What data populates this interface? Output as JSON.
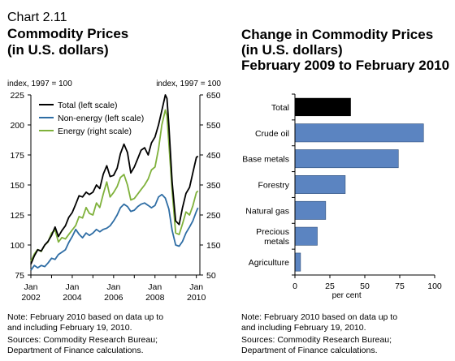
{
  "chart_data": [
    {
      "type": "line",
      "number": "Chart 2.11",
      "title": [
        "Commodity Prices",
        "(in U.S. dollars)"
      ],
      "left_axis_label": "index, 1997 = 100",
      "right_axis_label": "index, 1997 = 100",
      "ylim_left": [
        75,
        225
      ],
      "ylim_right": [
        50,
        650
      ],
      "yticks_left": [
        75,
        100,
        125,
        150,
        175,
        200,
        225
      ],
      "yticks_right": [
        50,
        150,
        250,
        350,
        450,
        550,
        650
      ],
      "xlim": [
        2002,
        2010.17
      ],
      "xticks": [
        {
          "value": 2002,
          "label": [
            "Jan",
            "2002"
          ]
        },
        {
          "value": 2004,
          "label": [
            "Jan",
            "2004"
          ]
        },
        {
          "value": 2006,
          "label": [
            "Jan",
            "2006"
          ]
        },
        {
          "value": 2008,
          "label": [
            "Jan",
            "2008"
          ]
        },
        {
          "value": 2010,
          "label": [
            "Jan",
            "2010"
          ]
        }
      ],
      "legend_position": "top-left",
      "series": [
        {
          "name": "Total (left scale)",
          "axis": "left",
          "color": "#000000",
          "points": [
            [
              2002.0,
              84
            ],
            [
              2002.17,
              91
            ],
            [
              2002.33,
              96
            ],
            [
              2002.5,
              95
            ],
            [
              2002.67,
              100
            ],
            [
              2002.83,
              103
            ],
            [
              2003.0,
              108
            ],
            [
              2003.17,
              115
            ],
            [
              2003.33,
              107
            ],
            [
              2003.5,
              112
            ],
            [
              2003.67,
              116
            ],
            [
              2003.83,
              123
            ],
            [
              2004.0,
              127
            ],
            [
              2004.17,
              134
            ],
            [
              2004.33,
              141
            ],
            [
              2004.5,
              140
            ],
            [
              2004.67,
              144
            ],
            [
              2004.83,
              142
            ],
            [
              2005.0,
              144
            ],
            [
              2005.17,
              150
            ],
            [
              2005.33,
              147
            ],
            [
              2005.5,
              159
            ],
            [
              2005.67,
              166
            ],
            [
              2005.83,
              157
            ],
            [
              2006.0,
              158
            ],
            [
              2006.17,
              164
            ],
            [
              2006.33,
              176
            ],
            [
              2006.5,
              184
            ],
            [
              2006.67,
              177
            ],
            [
              2006.83,
              160
            ],
            [
              2007.0,
              165
            ],
            [
              2007.17,
              172
            ],
            [
              2007.33,
              179
            ],
            [
              2007.5,
              181
            ],
            [
              2007.67,
              175
            ],
            [
              2007.83,
              185
            ],
            [
              2008.0,
              190
            ],
            [
              2008.17,
              200
            ],
            [
              2008.33,
              212
            ],
            [
              2008.5,
              225
            ],
            [
              2008.58,
              222
            ],
            [
              2008.67,
              200
            ],
            [
              2008.83,
              152
            ],
            [
              2009.0,
              120
            ],
            [
              2009.17,
              117
            ],
            [
              2009.33,
              131
            ],
            [
              2009.5,
              143
            ],
            [
              2009.67,
              148
            ],
            [
              2009.83,
              160
            ],
            [
              2010.0,
              173
            ],
            [
              2010.08,
              174
            ]
          ]
        },
        {
          "name": "Non-energy (left scale)",
          "axis": "left",
          "color": "#2e6da4",
          "points": [
            [
              2002.0,
              79
            ],
            [
              2002.17,
              83
            ],
            [
              2002.33,
              81
            ],
            [
              2002.5,
              83
            ],
            [
              2002.67,
              82
            ],
            [
              2002.83,
              85
            ],
            [
              2003.0,
              89
            ],
            [
              2003.17,
              88
            ],
            [
              2003.33,
              92
            ],
            [
              2003.5,
              94
            ],
            [
              2003.67,
              96
            ],
            [
              2003.83,
              102
            ],
            [
              2004.0,
              107
            ],
            [
              2004.17,
              113
            ],
            [
              2004.33,
              109
            ],
            [
              2004.5,
              106
            ],
            [
              2004.67,
              110
            ],
            [
              2004.83,
              108
            ],
            [
              2005.0,
              110
            ],
            [
              2005.17,
              113
            ],
            [
              2005.33,
              111
            ],
            [
              2005.5,
              113
            ],
            [
              2005.67,
              114
            ],
            [
              2005.83,
              116
            ],
            [
              2006.0,
              120
            ],
            [
              2006.17,
              125
            ],
            [
              2006.33,
              131
            ],
            [
              2006.5,
              134
            ],
            [
              2006.67,
              132
            ],
            [
              2006.83,
              128
            ],
            [
              2007.0,
              129
            ],
            [
              2007.17,
              132
            ],
            [
              2007.33,
              134
            ],
            [
              2007.5,
              135
            ],
            [
              2007.67,
              133
            ],
            [
              2007.83,
              131
            ],
            [
              2008.0,
              133
            ],
            [
              2008.17,
              140
            ],
            [
              2008.33,
              142
            ],
            [
              2008.5,
              139
            ],
            [
              2008.67,
              130
            ],
            [
              2008.83,
              112
            ],
            [
              2009.0,
              100
            ],
            [
              2009.17,
              99
            ],
            [
              2009.33,
              103
            ],
            [
              2009.5,
              110
            ],
            [
              2009.67,
              115
            ],
            [
              2009.83,
              120
            ],
            [
              2010.0,
              128
            ],
            [
              2010.08,
              131
            ]
          ]
        },
        {
          "name": "Energy (right scale)",
          "axis": "right",
          "color": "#7fb13b",
          "points": [
            [
              2002.0,
              95
            ],
            [
              2002.17,
              120
            ],
            [
              2002.33,
              135
            ],
            [
              2002.5,
              128
            ],
            [
              2002.67,
              150
            ],
            [
              2002.83,
              160
            ],
            [
              2003.0,
              190
            ],
            [
              2003.17,
              200
            ],
            [
              2003.33,
              160
            ],
            [
              2003.5,
              175
            ],
            [
              2003.67,
              170
            ],
            [
              2003.83,
              185
            ],
            [
              2004.0,
              200
            ],
            [
              2004.17,
              215
            ],
            [
              2004.33,
              245
            ],
            [
              2004.5,
              240
            ],
            [
              2004.67,
              275
            ],
            [
              2004.83,
              255
            ],
            [
              2005.0,
              250
            ],
            [
              2005.17,
              290
            ],
            [
              2005.33,
              275
            ],
            [
              2005.5,
              320
            ],
            [
              2005.67,
              360
            ],
            [
              2005.83,
              310
            ],
            [
              2006.0,
              325
            ],
            [
              2006.17,
              345
            ],
            [
              2006.33,
              375
            ],
            [
              2006.5,
              385
            ],
            [
              2006.67,
              350
            ],
            [
              2006.83,
              300
            ],
            [
              2007.0,
              305
            ],
            [
              2007.17,
              320
            ],
            [
              2007.33,
              335
            ],
            [
              2007.5,
              350
            ],
            [
              2007.67,
              370
            ],
            [
              2007.83,
              400
            ],
            [
              2008.0,
              410
            ],
            [
              2008.17,
              470
            ],
            [
              2008.33,
              550
            ],
            [
              2008.5,
              600
            ],
            [
              2008.58,
              580
            ],
            [
              2008.67,
              490
            ],
            [
              2008.83,
              330
            ],
            [
              2009.0,
              190
            ],
            [
              2009.17,
              185
            ],
            [
              2009.33,
              220
            ],
            [
              2009.5,
              260
            ],
            [
              2009.67,
              250
            ],
            [
              2009.83,
              280
            ],
            [
              2010.0,
              325
            ],
            [
              2010.08,
              330
            ]
          ]
        }
      ]
    },
    {
      "type": "bar",
      "orientation": "horizontal",
      "title": [
        "Change in Commodity Prices",
        "(in U.S. dollars)",
        "February 2009 to February 2010"
      ],
      "categories": [
        [
          "Total"
        ],
        [
          "Crude oil"
        ],
        [
          "Base metals"
        ],
        [
          "Forestry"
        ],
        [
          "Natural gas"
        ],
        [
          "Precious",
          "metals"
        ],
        [
          "Agriculture"
        ]
      ],
      "values": [
        40,
        92,
        74,
        36,
        22,
        16,
        4
      ],
      "colors": [
        "#000000",
        "#5b84c1",
        "#5b84c1",
        "#5b84c1",
        "#5b84c1",
        "#5b84c1",
        "#5b84c1"
      ],
      "xlim": [
        0,
        100
      ],
      "xticks": [
        0,
        25,
        50,
        75,
        100
      ],
      "xlabel": "per cent"
    }
  ],
  "notes_left": [
    "Note: February 2010 based on data up to",
    "and including February 19, 2010."
  ],
  "sources_left": [
    "Sources: Commodity Research Bureau;",
    "Department of Finance calculations."
  ],
  "notes_right": [
    "Note: February 2010 based on data up to",
    "and including February 19, 2010."
  ],
  "sources_right": [
    "Sources: Commodity Research Bureau;",
    "Department of Finance calculations."
  ]
}
